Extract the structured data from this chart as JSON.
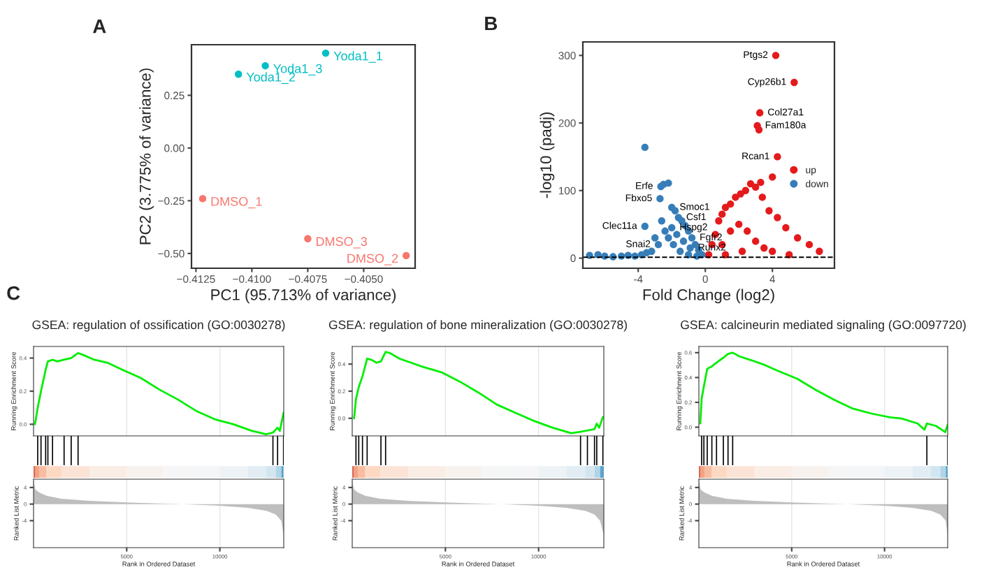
{
  "chart_data": [
    {
      "type": "scatter",
      "xlabel": "PC1 (95.713% of variance)",
      "ylabel": "PC2 (3.775% of variance)",
      "marker": "circle",
      "xlim": [
        -0.4127,
        -0.4027
      ],
      "ylim": [
        -0.57,
        0.49
      ],
      "xticks": [
        {
          "value": -0.4125,
          "label": "−0.4125"
        },
        {
          "value": -0.41,
          "label": "−0.4100"
        },
        {
          "value": -0.4075,
          "label": "−0.4075"
        },
        {
          "value": -0.405,
          "label": "−0.4050"
        }
      ],
      "yticks": [
        {
          "value": -0.5,
          "label": "−0.50"
        },
        {
          "value": -0.25,
          "label": "−0.25"
        },
        {
          "value": 0,
          "label": "0.00"
        },
        {
          "value": 0.25,
          "label": "0.25"
        }
      ],
      "series": [
        {
          "color": "#f8766d",
          "x": [
            -0.4122,
            -0.4031,
            -0.4075
          ],
          "values": [
            -0.24,
            -0.51,
            -0.43
          ]
        },
        {
          "color": "#00bfc4",
          "x": [
            -0.4067,
            -0.4106,
            -0.4094
          ],
          "values": [
            0.45,
            0.35,
            0.39
          ]
        }
      ],
      "annotations": [
        "A",
        {
          "text": "Yoda1_1",
          "x": -0.4067,
          "y": 0.45
        },
        {
          "text": "Yoda1_2",
          "x": -0.4106,
          "y": 0.35
        },
        {
          "text": "Yoda1_3",
          "x": -0.4094,
          "y": 0.39
        },
        {
          "text": "DMSO_1",
          "x": -0.4122,
          "y": -0.24
        },
        {
          "text": "DMSO_2",
          "x": -0.4031,
          "y": -0.51
        },
        {
          "text": "DMSO_3",
          "x": -0.4075,
          "y": -0.43
        }
      ]
    },
    {
      "type": "scatter",
      "xlabel": "Fold Change (log2)",
      "ylabel": "-log10 (padj)",
      "marker": "circle",
      "legend": "right",
      "xlim": [
        -7.3,
        7.7
      ],
      "ylim": [
        -15,
        320
      ],
      "xticks": [
        {
          "value": -4,
          "label": "-4"
        },
        0,
        4
      ],
      "yticks": [
        0,
        100,
        200,
        300
      ],
      "series": [
        {
          "name": "up",
          "color": "#e41a1c",
          "x": [
            0.2,
            0.4,
            0.6,
            0.8,
            1.0,
            1.2,
            1.5,
            1.8,
            2.1,
            2.4,
            2.7,
            3.0,
            3.4,
            3.8,
            4.3,
            4.8,
            5.5,
            6.2,
            6.8,
            1.0,
            1.5,
            2.0,
            2.5,
            3.0,
            3.5,
            4.0,
            5.0,
            2.2,
            1.2,
            3.1,
            3.2,
            3.25,
            4.2,
            5.3,
            4.3,
            4.0,
            3.3
          ],
          "values": [
            5,
            20,
            35,
            55,
            65,
            75,
            80,
            90,
            95,
            100,
            110,
            105,
            90,
            70,
            60,
            45,
            30,
            20,
            10,
            20,
            40,
            50,
            40,
            25,
            15,
            10,
            5,
            10,
            5,
            196,
            190,
            215,
            300,
            260,
            150,
            120,
            112
          ]
        },
        {
          "name": "down",
          "color": "#377eb8",
          "x": [
            -6.9,
            -6.4,
            -6.0,
            -5.5,
            -5.0,
            -4.6,
            -4.2,
            -3.8,
            -3.5,
            -3.2,
            -3.6,
            -3.6,
            -2.7,
            -2.65,
            -2.5,
            -2.2,
            -2.0,
            -1.8,
            -1.6,
            -1.4,
            -1.2,
            -1.0,
            -0.8,
            -0.6,
            -0.4,
            -0.2,
            -2.4,
            -2.2,
            -1.9,
            -1.5,
            -1.0,
            -2.8,
            -3.0,
            -2.6,
            -2.0,
            -1.7,
            -1.3,
            -0.9,
            -0.5
          ],
          "values": [
            4,
            5,
            3,
            2,
            3,
            4,
            3,
            5,
            8,
            10,
            164,
            47,
            88,
            106,
            109,
            111,
            75,
            70,
            60,
            55,
            48,
            40,
            30,
            20,
            12,
            5,
            40,
            30,
            20,
            10,
            5,
            20,
            30,
            55,
            45,
            35,
            25,
            15,
            3
          ]
        }
      ],
      "ref_lines": [
        {
          "axis": "y",
          "value": 1.3,
          "line_style": "dashed",
          "color": "#000000"
        }
      ],
      "annotations": [
        "B",
        {
          "text": "Ptgs2",
          "x": 4.2,
          "y": 300
        },
        {
          "text": "Cyp26b1",
          "x": 5.3,
          "y": 260
        },
        {
          "text": "Col27a1",
          "x": 3.25,
          "y": 215
        },
        {
          "text": "Fam180a",
          "x": 3.1,
          "y": 196
        },
        {
          "text": "Rcan1",
          "x": 4.3,
          "y": 150
        },
        {
          "text": "Erfe",
          "x": -2.65,
          "y": 106
        },
        {
          "text": "Smoc1",
          "x": -2.0,
          "y": 75
        },
        {
          "text": "Csf1",
          "x": -1.6,
          "y": 60
        },
        {
          "text": "Fbxo5",
          "x": -2.7,
          "y": 88
        },
        {
          "text": "Hspg2",
          "x": -2.0,
          "y": 45
        },
        {
          "text": "Clec11a",
          "x": -3.6,
          "y": 47
        },
        {
          "text": "Fgfr2",
          "x": -0.8,
          "y": 30
        },
        {
          "text": "Snai2",
          "x": -2.8,
          "y": 20
        },
        {
          "text": "Runx2",
          "x": -0.9,
          "y": 15
        }
      ]
    },
    {
      "type": "line",
      "title": "GSEA: regulation of ossification (GO:0030278)",
      "ylabel": "Running Enrichment Score",
      "grid": "x",
      "tick_labels": "y",
      "xlim": [
        0,
        13430
      ],
      "ylim": [
        -0.07,
        0.47
      ],
      "xticks": [
        5000,
        10000
      ],
      "yticks": [
        {
          "value": 0,
          "label": "0.0"
        },
        0.2,
        0.4
      ],
      "series": [
        {
          "color": "#00ee00",
          "x": [
            75,
            224,
            400,
            650,
            770,
            1020,
            1270,
            1640,
            2020,
            2390,
            2640,
            3260,
            4010,
            4760,
            5750,
            6750,
            7740,
            8740,
            9740,
            10730,
            11730,
            12480,
            12850,
            13100,
            13220,
            13420
          ],
          "values": [
            0.0,
            0.1,
            0.2,
            0.33,
            0.38,
            0.39,
            0.38,
            0.39,
            0.4,
            0.43,
            0.42,
            0.39,
            0.37,
            0.33,
            0.28,
            0.21,
            0.15,
            0.08,
            0.03,
            0.0,
            -0.04,
            -0.06,
            -0.05,
            -0.02,
            -0.04,
            0.07
          ]
        }
      ],
      "annotations": [
        "C"
      ]
    },
    {
      "type": "area",
      "xlabel": "Rank in Ordered Dataset",
      "ylabel": "Ranked List Metric",
      "grid": "x",
      "xlim": [
        0,
        13430
      ],
      "ylim": [
        -10.5,
        6
      ],
      "xticks": [
        5000,
        10000
      ],
      "yticks": [
        {
          "value": -4,
          "label": "-4"
        },
        0,
        4
      ],
      "series": [
        {
          "color": "#bebebe",
          "x": [
            0,
            100,
            300,
            700,
            1500,
            3000,
            5000,
            7000,
            8000,
            10000,
            11500,
            12500,
            13000,
            13300,
            13420
          ],
          "values": [
            5.5,
            3.5,
            2.8,
            2,
            1.3,
            0.8,
            0.4,
            0.1,
            0,
            -0.4,
            -0.9,
            -1.6,
            -2.5,
            -4,
            -7.5
          ]
        }
      ]
    },
    {
      "type": "line",
      "title": "GSEA: regulation of bone mineralization (GO:0030278)",
      "ylabel": "Running Enrichment Score",
      "grid": "x",
      "tick_labels": "y",
      "xlim": [
        0,
        13500
      ],
      "ylim": [
        -0.13,
        0.53
      ],
      "xticks": [
        5000,
        10000
      ],
      "yticks": [
        {
          "value": 0,
          "label": "0.0"
        },
        0.2,
        0.4
      ],
      "series": [
        {
          "color": "#00ee00",
          "x": [
            100,
            200,
            350,
            550,
            800,
            1050,
            1300,
            1540,
            1790,
            2040,
            2540,
            3160,
            3780,
            4780,
            5780,
            6770,
            7770,
            8760,
            9760,
            10760,
            11750,
            12250,
            12620,
            13000,
            13120,
            13250,
            13450
          ],
          "values": [
            0.0,
            0.14,
            0.23,
            0.31,
            0.44,
            0.43,
            0.41,
            0.42,
            0.49,
            0.48,
            0.44,
            0.41,
            0.38,
            0.34,
            0.27,
            0.19,
            0.1,
            0.04,
            -0.02,
            -0.07,
            -0.11,
            -0.1,
            -0.09,
            -0.08,
            -0.04,
            -0.07,
            0.01
          ]
        }
      ]
    },
    {
      "type": "area",
      "xlabel": "Rank in Ordered Dataset",
      "ylabel": "Ranked List Metric",
      "grid": "x",
      "xlim": [
        0,
        13500
      ],
      "ylim": [
        -10.5,
        6
      ],
      "xticks": [
        5000,
        10000
      ],
      "yticks": [
        {
          "value": -4,
          "label": "-4"
        },
        0,
        4
      ],
      "series": [
        {
          "color": "#bebebe",
          "x": [
            0,
            100,
            300,
            700,
            1500,
            3000,
            5000,
            7000,
            8000,
            10000,
            11500,
            12500,
            13000,
            13300,
            13500
          ],
          "values": [
            5.5,
            3.5,
            2.8,
            2,
            1.3,
            0.8,
            0.4,
            0.1,
            0,
            -0.4,
            -0.9,
            -1.6,
            -2.5,
            -4,
            -7.5
          ]
        }
      ]
    },
    {
      "type": "line",
      "title": "GSEA: calcineurin mediated signaling (GO:0097720)",
      "ylabel": "Running Enrichment Score",
      "grid": "x",
      "tick_labels": "y",
      "xlim": [
        0,
        13400
      ],
      "ylim": [
        -0.07,
        0.65
      ],
      "xticks": [
        5000,
        10000
      ],
      "yticks": [
        {
          "value": 0,
          "label": "0.0"
        },
        0.2,
        0.4,
        0.6
      ],
      "series": [
        {
          "color": "#00ee00",
          "x": [
            75,
            150,
            270,
            450,
            700,
            950,
            1320,
            1570,
            1820,
            2190,
            2810,
            3560,
            4310,
            5300,
            6300,
            7300,
            8290,
            9290,
            10280,
            10910,
            11780,
            12150,
            12280,
            12770,
            13270,
            13400
          ],
          "values": [
            0.03,
            0.23,
            0.33,
            0.47,
            0.49,
            0.52,
            0.56,
            0.59,
            0.6,
            0.57,
            0.54,
            0.5,
            0.45,
            0.39,
            0.3,
            0.22,
            0.15,
            0.11,
            0.08,
            0.07,
            0.03,
            -0.02,
            0.03,
            0.01,
            -0.04,
            0.02
          ]
        }
      ]
    },
    {
      "type": "area",
      "xlabel": "Rank in Ordered Dataset",
      "ylabel": "Ranked List Metric",
      "grid": "x",
      "xlim": [
        0,
        13400
      ],
      "ylim": [
        -10.5,
        6
      ],
      "xticks": [
        5000,
        10000
      ],
      "yticks": [
        {
          "value": -4,
          "label": "-4"
        },
        0,
        4
      ],
      "series": [
        {
          "color": "#bebebe",
          "x": [
            0,
            100,
            300,
            700,
            1500,
            3000,
            5000,
            7000,
            8000,
            10000,
            11500,
            12500,
            13000,
            13300,
            13400
          ],
          "values": [
            5.5,
            3.5,
            2.8,
            2,
            1.3,
            0.8,
            0.4,
            0.1,
            0,
            -0.4,
            -0.9,
            -1.6,
            -2.5,
            -4,
            -7.5
          ]
        }
      ]
    }
  ]
}
